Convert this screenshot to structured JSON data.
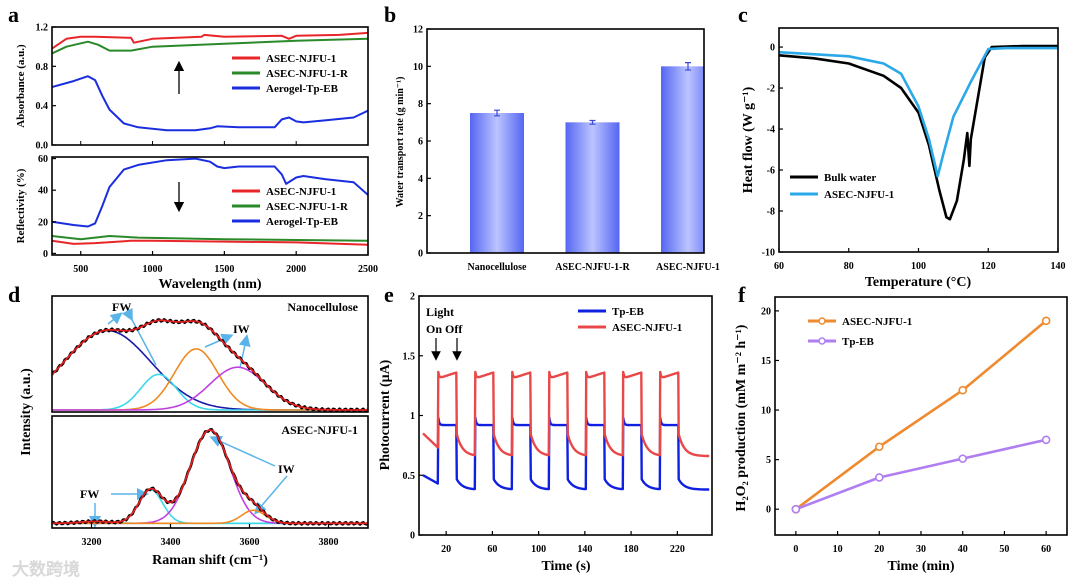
{
  "panel_labels": [
    "a",
    "b",
    "c",
    "d",
    "e",
    "f"
  ],
  "watermark": "大数跨境",
  "chart_data": [
    {
      "id": "a_top",
      "type": "line",
      "ylabel": "Absorbance (a.u.)",
      "xlabel": "",
      "xlim": [
        300,
        2500
      ],
      "ylim": [
        0,
        1.2
      ],
      "yticks": [
        "0.0",
        "0.4",
        "0.8",
        "1.2"
      ],
      "xticks": [],
      "legend": "right",
      "series": [
        {
          "name": "ASEC-NJFU-1",
          "color": "#e8262a",
          "x": [
            300,
            400,
            500,
            600,
            850,
            870,
            1000,
            1340,
            1360,
            1500,
            1900,
            1950,
            2000,
            2300,
            2500
          ],
          "y": [
            0.98,
            1.08,
            1.1,
            1.1,
            1.09,
            1.04,
            1.08,
            1.1,
            1.12,
            1.1,
            1.11,
            1.08,
            1.11,
            1.12,
            1.14
          ]
        },
        {
          "name": "ASEC-NJFU-1-R",
          "color": "#2a8a2a",
          "x": [
            300,
            400,
            550,
            620,
            700,
            850,
            1000,
            1500,
            2000,
            2500
          ],
          "y": [
            0.93,
            1.0,
            1.05,
            1.02,
            0.96,
            0.96,
            1.0,
            1.03,
            1.06,
            1.08
          ]
        },
        {
          "name": "Aerogel-Tp-EB",
          "color": "#1a2ee0",
          "x": [
            300,
            450,
            550,
            600,
            650,
            700,
            800,
            900,
            1100,
            1300,
            1400,
            1450,
            1600,
            1850,
            1900,
            1950,
            2000,
            2050,
            2200,
            2400,
            2500
          ],
          "y": [
            0.59,
            0.65,
            0.7,
            0.66,
            0.5,
            0.36,
            0.22,
            0.18,
            0.15,
            0.15,
            0.17,
            0.19,
            0.18,
            0.18,
            0.26,
            0.28,
            0.24,
            0.23,
            0.25,
            0.28,
            0.35
          ]
        }
      ]
    },
    {
      "id": "a_bottom",
      "type": "line",
      "ylabel": "Reflectivity (%)",
      "xlabel": "Wavelength (nm)",
      "xlim": [
        300,
        2500
      ],
      "ylim": [
        -1,
        61
      ],
      "yticks": [
        "0",
        "20",
        "40",
        "60"
      ],
      "xticks": [
        "500",
        "1000",
        "1500",
        "2000",
        "2500"
      ],
      "legend": "right",
      "series": [
        {
          "name": "ASEC-NJFU-1",
          "color": "#e8262a",
          "x": [
            300,
            450,
            600,
            850,
            1000,
            1500,
            2000,
            2500
          ],
          "y": [
            8,
            6,
            6.5,
            8,
            8,
            7.5,
            7,
            5.5
          ]
        },
        {
          "name": "ASEC-NJFU-1-R",
          "color": "#2a8a2a",
          "x": [
            300,
            500,
            700,
            900,
            1500,
            2000,
            2500
          ],
          "y": [
            11,
            9,
            11,
            10,
            9,
            8.5,
            8
          ]
        },
        {
          "name": "Aerogel-Tp-EB",
          "color": "#1a2ee0",
          "x": [
            300,
            450,
            550,
            600,
            650,
            700,
            800,
            900,
            1100,
            1300,
            1400,
            1450,
            1500,
            1600,
            1850,
            1900,
            1930,
            2000,
            2050,
            2200,
            2400,
            2500
          ],
          "y": [
            20,
            18,
            17,
            19,
            30,
            42,
            53,
            56,
            59,
            60,
            58,
            55,
            54,
            55,
            55,
            50,
            44,
            48,
            49,
            47,
            45,
            37
          ]
        }
      ]
    },
    {
      "id": "b",
      "type": "bar",
      "ylabel": "Water transport rate (g min⁻¹)",
      "xlabel": "",
      "categories": [
        "Nanocellulose",
        "ASEC-NJFU-1-R",
        "ASEC-NJFU-1"
      ],
      "values": [
        7.5,
        7.0,
        10.0
      ],
      "errors": [
        0.15,
        0.1,
        0.2
      ],
      "ylim": [
        0,
        12
      ],
      "yticks": [
        "0",
        "2",
        "4",
        "6",
        "8",
        "10",
        "12"
      ],
      "color": "#5b6cf5"
    },
    {
      "id": "c",
      "type": "line",
      "ylabel": "Heat flow (W g⁻¹)",
      "xlabel": "Temperature (°C)",
      "xlim": [
        60,
        140
      ],
      "ylim": [
        -10,
        0.93
      ],
      "xticks": [
        "60",
        "80",
        "100",
        "120",
        "140"
      ],
      "yticks": [
        "-10",
        "-8",
        "-6",
        "-4",
        "-2",
        "0"
      ],
      "legend": "bottom-left",
      "series": [
        {
          "name": "Bulk water",
          "color": "#000000",
          "x": [
            60,
            70,
            80,
            90,
            95,
            100,
            103,
            106,
            108,
            109,
            111,
            113,
            114,
            114.6,
            115,
            117,
            119,
            121,
            130,
            140
          ],
          "y": [
            -0.4,
            -0.55,
            -0.8,
            -1.4,
            -2,
            -3.2,
            -4.8,
            -7,
            -8.3,
            -8.4,
            -7.5,
            -5.5,
            -4.2,
            -5.8,
            -4.5,
            -2.5,
            -0.5,
            0,
            0.05,
            0.05
          ]
        },
        {
          "name": "ASEC-NJFU-1",
          "color": "#2aa8e8",
          "x": [
            60,
            80,
            90,
            95,
            100,
            103,
            105.5,
            107,
            110,
            115,
            120,
            125,
            140
          ],
          "y": [
            -0.25,
            -0.45,
            -0.8,
            -1.3,
            -2.9,
            -4.5,
            -6.3,
            -5.3,
            -3.4,
            -1.7,
            -0.1,
            -0.05,
            -0.05
          ]
        }
      ]
    },
    {
      "id": "d",
      "type": "line",
      "ylabel": "Intensity (a.u.)",
      "xlabel": "Raman shift (cm⁻¹)",
      "xlim": [
        3100,
        3900
      ],
      "xticks": [
        "3200",
        "3400",
        "3600",
        "3800"
      ],
      "subplots": [
        {
          "title": "Nanocellulose",
          "ylim": [
            -0.02,
            1.12
          ],
          "annotations": [
            "FW",
            "IW"
          ],
          "components": [
            {
              "name": "FW-1",
              "color": "#1a1aa8",
              "center": 3240,
              "amplitude": 0.78,
              "width": 110
            },
            {
              "name": "FW-2",
              "color": "#3ad8e8",
              "center": 3370,
              "amplitude": 0.35,
              "width": 45
            },
            {
              "name": "IW-1",
              "color": "#f08a20",
              "center": 3465,
              "amplitude": 0.6,
              "width": 55
            },
            {
              "name": "IW-2",
              "color": "#c040e0",
              "center": 3570,
              "amplitude": 0.42,
              "width": 70
            }
          ],
          "fit_color": "#e02020",
          "data_color": "#000000"
        },
        {
          "title": "ASEC-NJFU-1",
          "ylim": [
            -0.05,
            1.15
          ],
          "annotations": [
            "FW",
            "IW"
          ],
          "components": [
            {
              "name": "FW-1",
              "color": "#3ad8e8",
              "center": 3210,
              "amplitude": 0.02,
              "width": 40
            },
            {
              "name": "FW-2",
              "color": "#3ad8e8",
              "center": 3350,
              "amplitude": 0.36,
              "width": 30
            },
            {
              "name": "IW-1",
              "color": "#c040e0",
              "center": 3500,
              "amplitude": 1.0,
              "width": 50
            },
            {
              "name": "IW-2",
              "color": "#f08a20",
              "center": 3610,
              "amplitude": 0.14,
              "width": 30
            }
          ],
          "fit_color": "#e02020",
          "data_color": "#000000"
        }
      ]
    },
    {
      "id": "e",
      "type": "line",
      "ylabel": "Photocurrent (μA)",
      "xlabel": "Time (s)",
      "xlim": [
        -3.5,
        250
      ],
      "ylim": [
        0,
        2
      ],
      "xticks": [
        "20",
        "60",
        "100",
        "140",
        "180",
        "220"
      ],
      "yticks": [
        "0",
        "0.5",
        "1",
        "1.5",
        "2"
      ],
      "annotations": {
        "light": "Light",
        "onoff": "On Off"
      },
      "legend": "top-right",
      "on_times": [
        13,
        45,
        77,
        109,
        141,
        173,
        205
      ],
      "on_duration": 16,
      "t_end": 248,
      "series": [
        {
          "name": "Tp-EB",
          "color": "#1020e0",
          "on_level": 0.92,
          "on_spike": 1.0,
          "on_rise": 0.0,
          "off_start": 0.47,
          "off_end": 0.38,
          "initial": [
            0.5,
            0.43
          ]
        },
        {
          "name": "ASEC-NJFU-1",
          "color": "#e84848",
          "on_level": 1.31,
          "on_spike": 1.38,
          "on_rise": 0.05,
          "off_start": 0.85,
          "off_end": 0.66,
          "initial": [
            0.85,
            0.73
          ]
        }
      ]
    },
    {
      "id": "f",
      "type": "line",
      "ylabel": "H₂O₂ production (mM m⁻² h⁻¹)",
      "xlabel": "Time (min)",
      "xlim": [
        -5,
        65
      ],
      "ylim": [
        -2.6,
        21.4
      ],
      "xticks": [
        "0",
        "10",
        "20",
        "30",
        "40",
        "50",
        "60"
      ],
      "yticks": [
        "0",
        "5",
        "10",
        "15",
        "20"
      ],
      "legend": "top-left",
      "series": [
        {
          "name": "ASEC-NJFU-1",
          "color": "#ee8a30",
          "x": [
            0,
            20,
            40,
            60
          ],
          "y": [
            0,
            6.3,
            12,
            19
          ]
        },
        {
          "name": "Tp-EB",
          "color": "#b07ef0",
          "x": [
            0,
            20,
            40,
            60
          ],
          "y": [
            0,
            3.2,
            5.1,
            7
          ]
        }
      ]
    }
  ]
}
